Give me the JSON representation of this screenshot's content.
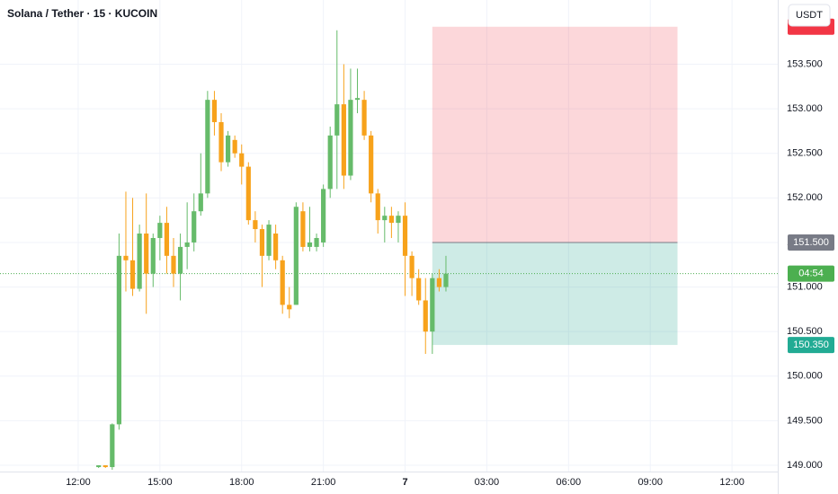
{
  "chart_data": {
    "type": "candlestick",
    "title": "Solana / Tether · 15 · KUCOIN",
    "currency_button": "USDT",
    "up_color": "#66bb6a",
    "down_color": "#f7a21b",
    "grid": true,
    "xlim": [
      9.13,
      37.68
    ],
    "ylim": [
      148.93,
      154.22
    ],
    "xticks": [
      {
        "value": 12,
        "label": "12:00"
      },
      {
        "value": 15,
        "label": "15:00"
      },
      {
        "value": 18,
        "label": "18:00"
      },
      {
        "value": 21,
        "label": "21:00"
      },
      {
        "value": 24,
        "label": "7"
      },
      {
        "value": 27,
        "label": "03:00"
      },
      {
        "value": 30,
        "label": "06:00"
      },
      {
        "value": 33,
        "label": "09:00"
      },
      {
        "value": 36,
        "label": "12:00"
      }
    ],
    "yticks": [
      {
        "value": 149,
        "label": "149.000"
      },
      {
        "value": 149.5,
        "label": "149.500"
      },
      {
        "value": 150,
        "label": "150.000"
      },
      {
        "value": 150.5,
        "label": "150.500"
      },
      {
        "value": 151,
        "label": "151.000"
      },
      {
        "value": 151.5,
        "label": "151.500"
      },
      {
        "value": 152,
        "label": "152.000"
      },
      {
        "value": 152.5,
        "label": "152.500"
      },
      {
        "value": 153,
        "label": "153.000"
      },
      {
        "value": 153.5,
        "label": "153.500"
      }
    ],
    "x": [
      12.75,
      13,
      13.25,
      13.5,
      13.75,
      14,
      14.25,
      14.5,
      14.75,
      15,
      15.25,
      15.5,
      15.75,
      16,
      16.25,
      16.5,
      16.75,
      17,
      17.25,
      17.5,
      17.75,
      18,
      18.25,
      18.5,
      18.75,
      19,
      19.25,
      19.5,
      19.75,
      20,
      20.25,
      20.5,
      20.75,
      21,
      21.25,
      21.5,
      21.75,
      22,
      22.25,
      22.5,
      22.75,
      23,
      23.25,
      23.5,
      23.75,
      24,
      24.25,
      24.5,
      24.75,
      25,
      25.25,
      25.5
    ],
    "open": [
      148.98,
      149.0,
      148.98,
      149.46,
      151.35,
      151.3,
      150.98,
      151.6,
      151.15,
      151.55,
      151.72,
      151.35,
      151.15,
      151.45,
      151.5,
      151.85,
      152.05,
      153.1,
      152.85,
      152.4,
      152.65,
      152.5,
      152.35,
      151.75,
      151.65,
      151.35,
      151.6,
      151.3,
      150.8,
      150.8,
      151.85,
      151.45,
      151.45,
      151.5,
      152.1,
      152.7,
      153.05,
      152.25,
      153.1,
      153.1,
      152.7,
      152.05,
      151.75,
      151.8,
      151.72,
      151.8,
      151.35,
      151.1,
      150.85,
      150.5,
      151.1,
      151.0
    ],
    "high": [
      149.0,
      149.0,
      149.47,
      151.6,
      152.07,
      152.0,
      151.7,
      152.05,
      151.6,
      151.8,
      151.9,
      151.55,
      151.6,
      151.95,
      152.05,
      152.5,
      153.2,
      153.2,
      152.95,
      152.75,
      152.7,
      152.6,
      152.4,
      151.85,
      151.7,
      151.75,
      151.7,
      151.35,
      151.0,
      151.95,
      151.95,
      151.9,
      151.6,
      152.15,
      152.8,
      153.88,
      153.5,
      153.45,
      153.45,
      153.2,
      152.75,
      152.1,
      151.9,
      151.9,
      151.85,
      151.95,
      151.4,
      151.2,
      151.1,
      151.15,
      151.2,
      151.35
    ],
    "low": [
      148.97,
      148.97,
      148.95,
      149.4,
      150.95,
      150.9,
      150.95,
      150.7,
      151.0,
      151.3,
      151.15,
      151.0,
      150.85,
      151.2,
      151.4,
      151.8,
      152.0,
      152.7,
      152.3,
      152.35,
      152.45,
      152.15,
      151.7,
      151.5,
      151.0,
      151.3,
      151.2,
      150.7,
      150.65,
      150.8,
      151.4,
      151.4,
      151.4,
      151.45,
      152.0,
      152.1,
      152.1,
      152.2,
      152.95,
      152.65,
      151.95,
      151.6,
      151.5,
      151.55,
      151.5,
      150.9,
      150.9,
      150.8,
      150.25,
      150.25,
      150.95,
      150.95
    ],
    "close": [
      149.0,
      148.98,
      149.46,
      151.35,
      151.3,
      150.98,
      151.6,
      151.15,
      151.55,
      151.72,
      151.35,
      151.15,
      151.45,
      151.5,
      151.85,
      152.05,
      153.1,
      152.85,
      152.4,
      152.7,
      152.5,
      152.35,
      151.75,
      151.65,
      151.35,
      151.7,
      151.3,
      150.8,
      150.75,
      151.9,
      151.45,
      151.5,
      151.55,
      152.1,
      152.7,
      153.05,
      152.25,
      153.1,
      153.12,
      152.7,
      152.05,
      151.75,
      151.8,
      151.72,
      151.8,
      151.35,
      151.1,
      150.85,
      150.5,
      151.1,
      151.0,
      151.15
    ],
    "last_price": 151.15,
    "countdown": "04:54",
    "position": {
      "start": 25,
      "end": 34,
      "entry": 151.5,
      "entry_label": "151.500",
      "target": 150.35,
      "target_label": "150.350",
      "stop": 153.92,
      "stop_color": "rgba(242,54,69,0.2)",
      "target_color": "rgba(8,153,129,0.2)"
    }
  }
}
